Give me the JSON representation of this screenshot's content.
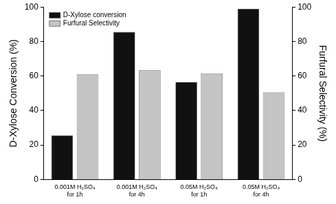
{
  "chart_data": {
    "type": "bar",
    "categories": [
      "0.001M H₂SO₄\nfor 1h",
      "0.001M H₂SO₄\nfor 4h",
      "0.05M H₂SO₄\nfor 1h",
      "0.05M H₂SO₄\nfor 4h"
    ],
    "series": [
      {
        "name": "D-Xylose conversion",
        "color": "#111111",
        "values": [
          25.5,
          85.5,
          56.5,
          99
        ]
      },
      {
        "name": "Furfural Selectivity",
        "color": "#c4c4c4",
        "values": [
          61,
          63.5,
          61.5,
          50.5
        ],
        "axis": "y2"
      }
    ],
    "y_label": "D-Xylose Conversion (%)",
    "y2_label": "Furfural Selectivity (%)",
    "ylim": [
      0,
      100
    ],
    "yticks": [
      0,
      20,
      40,
      60,
      80,
      100
    ],
    "y2lim": [
      0,
      100
    ],
    "y2ticks": [
      0,
      20,
      40,
      60,
      80,
      100
    ],
    "grid": false,
    "legend": "upper left"
  }
}
